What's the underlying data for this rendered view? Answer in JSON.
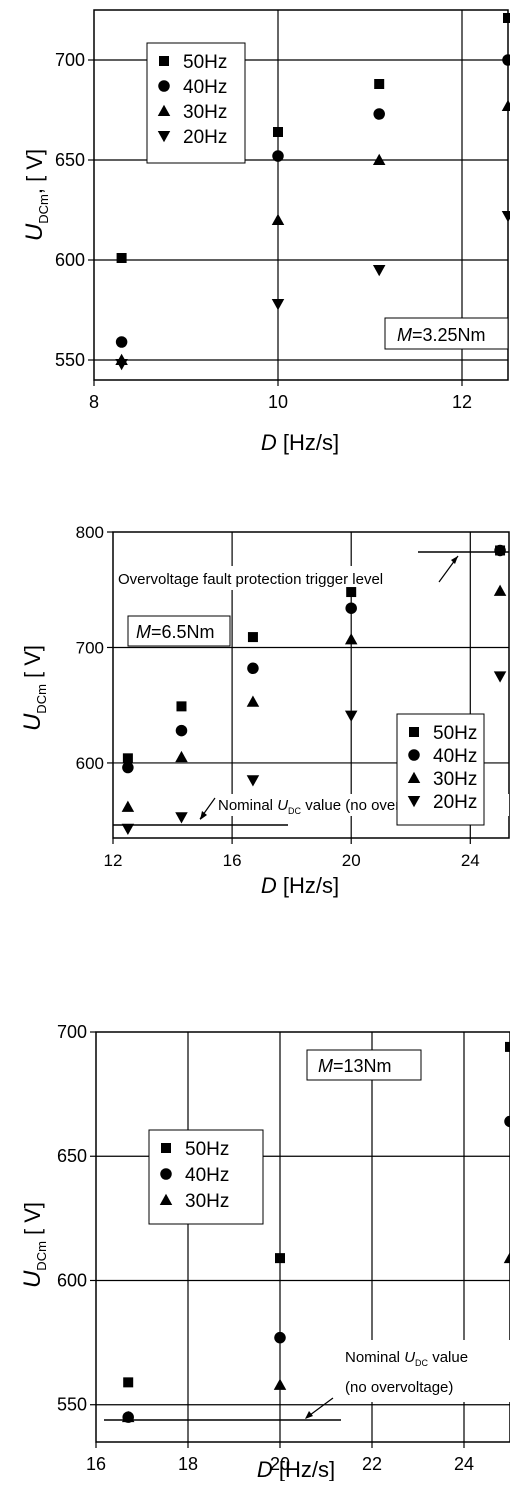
{
  "chart_data": [
    {
      "type": "scatter",
      "xlabel": "D [Hz/s]",
      "ylabel": "UDCm, [ V]",
      "xlim": [
        8,
        12.5
      ],
      "ylim": [
        540,
        725
      ],
      "xticks": [
        8,
        10,
        12
      ],
      "yticks": [
        550,
        600,
        650,
        700
      ],
      "grid": true,
      "legend_position": "top-left",
      "annotation": "M=3.25Nm",
      "series": [
        {
          "name": "50Hz",
          "marker": "square",
          "x": [
            8.3,
            10,
            11.1,
            12.5
          ],
          "y": [
            601,
            664,
            688,
            721
          ]
        },
        {
          "name": "40Hz",
          "marker": "circle",
          "x": [
            8.3,
            10,
            11.1,
            12.5
          ],
          "y": [
            559,
            652,
            673,
            700
          ]
        },
        {
          "name": "30Hz",
          "marker": "triangle-up",
          "x": [
            8.3,
            10,
            11.1,
            12.5
          ],
          "y": [
            550,
            620,
            650,
            677
          ]
        },
        {
          "name": "20Hz",
          "marker": "triangle-down",
          "x": [
            8.3,
            10,
            11.1,
            12.5
          ],
          "y": [
            548,
            578,
            595,
            622
          ]
        }
      ]
    },
    {
      "type": "scatter",
      "xlabel": "D [Hz/s]",
      "ylabel": "UDCm [ V]",
      "xlim": [
        12,
        25.3
      ],
      "ylim": [
        535,
        800
      ],
      "xticks": [
        12,
        16,
        20,
        24
      ],
      "yticks": [
        600,
        700,
        800
      ],
      "grid": true,
      "legend_position": "bottom-right",
      "annotation": "M=6.5Nm",
      "reference_lines": [
        {
          "label": "Overvoltage fault protection trigger level",
          "y": 784
        },
        {
          "label": "Nominal UDC value (no overvoltage)",
          "y": 543
        }
      ],
      "series": [
        {
          "name": "50Hz",
          "marker": "square",
          "x": [
            12.5,
            14.3,
            16.7,
            20,
            25
          ],
          "y": [
            604,
            649,
            709,
            748,
            784
          ]
        },
        {
          "name": "40Hz",
          "marker": "circle",
          "x": [
            12.5,
            14.3,
            16.7,
            20,
            25
          ],
          "y": [
            596,
            628,
            682,
            734,
            784
          ]
        },
        {
          "name": "30Hz",
          "marker": "triangle-up",
          "x": [
            12.5,
            14.3,
            16.7,
            20,
            25
          ],
          "y": [
            562,
            605,
            653,
            707,
            749
          ]
        },
        {
          "name": "20Hz",
          "marker": "triangle-down",
          "x": [
            12.5,
            14.3,
            16.7,
            20,
            25
          ],
          "y": [
            543,
            553,
            585,
            641,
            675
          ]
        }
      ]
    },
    {
      "type": "scatter",
      "xlabel": "D [Hz/s]",
      "ylabel": "UDCm [ V]",
      "xlim": [
        16,
        25
      ],
      "ylim": [
        535,
        700
      ],
      "xticks": [
        16,
        18,
        20,
        22,
        24
      ],
      "yticks": [
        550,
        600,
        650,
        700
      ],
      "grid": true,
      "legend_position": "top-left",
      "annotation": "M=13Nm",
      "reference_lines": [
        {
          "label": "Nominal UDC value (no overvoltage)",
          "y": 544
        }
      ],
      "series": [
        {
          "name": "50Hz",
          "marker": "square",
          "x": [
            16.7,
            20,
            25
          ],
          "y": [
            559,
            609,
            694
          ]
        },
        {
          "name": "40Hz",
          "marker": "circle",
          "x": [
            16.7,
            20,
            25
          ],
          "y": [
            545,
            577,
            664
          ]
        },
        {
          "name": "30Hz",
          "marker": "triangle-up",
          "x": [
            16.7,
            20,
            25
          ],
          "y": [
            545,
            558,
            609
          ]
        }
      ]
    }
  ],
  "labels": {
    "p1": {
      "ylabel_main": "U",
      "ylabel_sub": "DCm",
      "ylabel_unit": ", [ V]",
      "xlabel_var": "D",
      "xlabel_unit": " [Hz/s]",
      "ann_var": "M",
      "ann_val": "=3.25Nm"
    },
    "p2": {
      "ylabel_main": "U",
      "ylabel_sub": "DCm",
      "ylabel_unit": " [ V]",
      "xlabel_var": "D",
      "xlabel_unit": " [Hz/s]",
      "ann_var": "M",
      "ann_val": "=6.5Nm",
      "trigger_text": "Overvoltage fault protection trigger level",
      "nominal_pre": "Nominal ",
      "nominal_var": "U",
      "nominal_sub": "DC",
      "nominal_post": " value (no overvoltage)"
    },
    "p3": {
      "ylabel_main": "U",
      "ylabel_sub": "DCm",
      "ylabel_unit": " [ V]",
      "xlabel_var": "D",
      "xlabel_unit": " [Hz/s]",
      "ann_var": "M",
      "ann_val": "=13Nm",
      "nominal_pre": "Nominal ",
      "nominal_var": "U",
      "nominal_sub": "DC",
      "nominal_post": " value",
      "nominal_line2": "(no overvoltage)"
    }
  }
}
